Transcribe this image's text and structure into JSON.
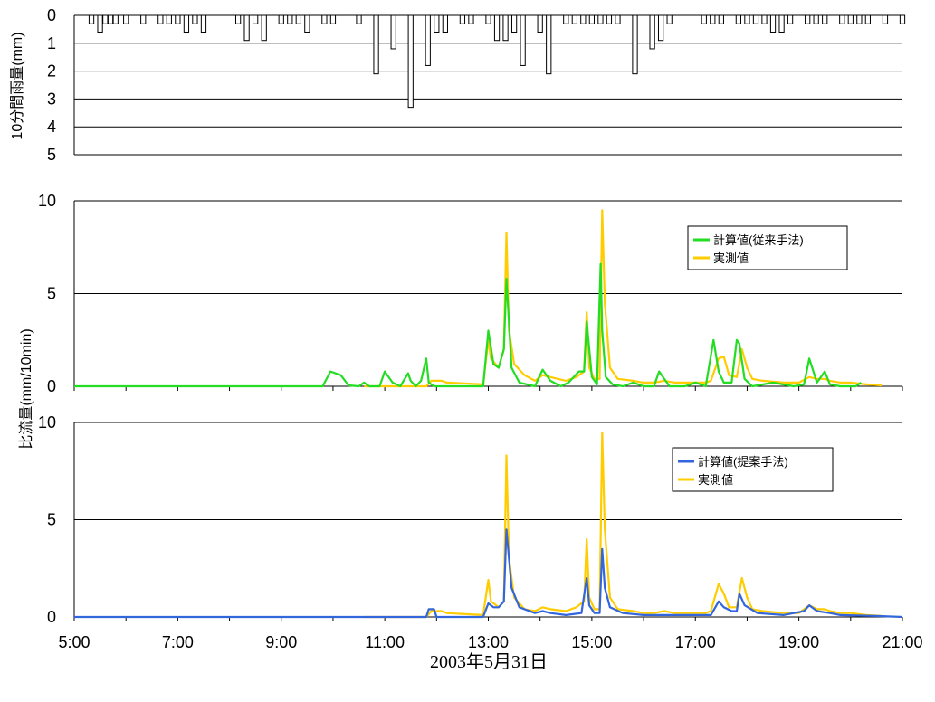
{
  "chart_data": [
    {
      "type": "bar",
      "ylabel": "10分間雨量(mm)",
      "ylim": [
        0,
        5
      ],
      "yticks": [
        "0",
        "1",
        "2",
        "3",
        "4",
        "5"
      ],
      "y_inverted": true,
      "grid": true,
      "x_range": [
        5,
        21
      ],
      "x": [
        5.333,
        5.5,
        5.6,
        5.7,
        5.8,
        6.0,
        6.333,
        6.667,
        6.833,
        7.0,
        7.167,
        7.333,
        7.5,
        8.167,
        8.333,
        8.5,
        8.667,
        9.0,
        9.167,
        9.333,
        9.5,
        9.833,
        10.0,
        10.5,
        10.833,
        11.167,
        11.5,
        11.833,
        12.0,
        12.167,
        12.5,
        12.667,
        13.0,
        13.167,
        13.333,
        13.5,
        13.667,
        14.0,
        14.167,
        14.5,
        14.667,
        14.833,
        15.0,
        15.167,
        15.333,
        15.5,
        15.833,
        16.167,
        16.333,
        16.5,
        17.167,
        17.333,
        17.5,
        17.833,
        18.0,
        18.167,
        18.333,
        18.5,
        18.667,
        18.833,
        19.167,
        19.333,
        19.5,
        19.833,
        20.0,
        20.167,
        20.333,
        20.667,
        21.0
      ],
      "values": [
        0.3,
        0.6,
        0.3,
        0.3,
        0.3,
        0.3,
        0.3,
        0.3,
        0.3,
        0.3,
        0.6,
        0.3,
        0.6,
        0.3,
        0.9,
        0.3,
        0.9,
        0.3,
        0.3,
        0.3,
        0.6,
        0.3,
        0.3,
        0.3,
        2.1,
        1.2,
        3.3,
        1.8,
        0.6,
        0.6,
        0.3,
        0.3,
        0.3,
        0.9,
        0.9,
        0.6,
        1.8,
        0.6,
        2.1,
        0.3,
        0.3,
        0.3,
        0.3,
        0.3,
        0.3,
        0.3,
        2.1,
        1.2,
        0.9,
        0.3,
        0.3,
        0.3,
        0.3,
        0.3,
        0.3,
        0.3,
        0.3,
        0.6,
        0.6,
        0.3,
        0.3,
        0.3,
        0.3,
        0.3,
        0.3,
        0.3,
        0.3,
        0.3,
        0.3
      ]
    },
    {
      "type": "line",
      "ylabel": "比流量(mm/10min)",
      "ylim": [
        0,
        10
      ],
      "yticks": [
        "0",
        "5",
        "10"
      ],
      "grid": true,
      "legend": "right",
      "series": [
        {
          "name": "計算値(従来手法)",
          "color": "#22dd22",
          "x": [
            5.0,
            9.8,
            9.95,
            10.15,
            10.3,
            10.5,
            10.6,
            10.7,
            10.9,
            11.0,
            11.15,
            11.3,
            11.45,
            11.5,
            11.6,
            11.7,
            11.8,
            11.85,
            11.95,
            12.1,
            12.9,
            13.0,
            13.1,
            13.2,
            13.3,
            13.35,
            13.45,
            13.6,
            13.9,
            14.05,
            14.2,
            14.4,
            14.55,
            14.75,
            14.85,
            14.9,
            15.0,
            15.1,
            15.17,
            15.2,
            15.27,
            15.4,
            15.6,
            15.8,
            16.0,
            16.2,
            16.3,
            16.5,
            16.8,
            17.0,
            17.2,
            17.35,
            17.45,
            17.55,
            17.7,
            17.8,
            17.85,
            17.95,
            18.1,
            18.5,
            18.9,
            19.1,
            19.2,
            19.35,
            19.5,
            19.6,
            19.8,
            20.1,
            20.2
          ],
          "values": [
            0,
            0,
            0.8,
            0.6,
            0.05,
            0,
            0.2,
            0,
            0,
            0.8,
            0.2,
            0,
            0.7,
            0.3,
            0,
            0.3,
            1.5,
            0.2,
            0,
            0,
            0,
            3.0,
            1.2,
            1.0,
            2.0,
            5.8,
            1.0,
            0.2,
            0,
            0.9,
            0.3,
            0,
            0.2,
            0.8,
            0.8,
            3.5,
            0.5,
            0.1,
            6.6,
            3.0,
            0.5,
            0.1,
            0,
            0.2,
            0,
            0,
            0.8,
            0,
            0,
            0.2,
            0,
            2.5,
            0.8,
            0.2,
            0.2,
            2.5,
            2.3,
            0.4,
            0,
            0.2,
            0,
            0.1,
            1.5,
            0.2,
            0.8,
            0.1,
            0,
            0,
            0.2
          ]
        },
        {
          "name": "実測値",
          "color": "#ffcc00",
          "x": [
            10.6,
            11.8,
            11.9,
            12.1,
            12.2,
            12.9,
            13.0,
            13.05,
            13.2,
            13.3,
            13.35,
            13.4,
            13.5,
            13.7,
            13.9,
            14.05,
            14.2,
            14.5,
            14.7,
            14.85,
            14.9,
            14.95,
            15.05,
            15.15,
            15.2,
            15.25,
            15.35,
            15.5,
            15.8,
            16.0,
            16.2,
            16.4,
            16.6,
            16.8,
            17.2,
            17.3,
            17.45,
            17.55,
            17.65,
            17.8,
            17.9,
            18.0,
            18.1,
            18.3,
            18.7,
            19.0,
            19.2,
            19.35,
            19.5,
            19.6,
            19.8,
            20.0,
            20.3,
            20.6
          ],
          "values": [
            0,
            0,
            0.3,
            0.3,
            0.2,
            0.1,
            2.5,
            1.5,
            1.0,
            2.0,
            8.3,
            3.0,
            1.2,
            0.6,
            0.3,
            0.6,
            0.5,
            0.3,
            0.5,
            0.8,
            4.0,
            1.0,
            0.4,
            0.4,
            9.5,
            4.5,
            1.0,
            0.4,
            0.3,
            0.2,
            0.2,
            0.3,
            0.2,
            0.2,
            0.2,
            0.3,
            1.5,
            1.6,
            0.6,
            0.5,
            2.0,
            1.0,
            0.4,
            0.3,
            0.2,
            0.2,
            0.5,
            0.4,
            0.4,
            0.3,
            0.2,
            0.2,
            0.1,
            0.05
          ]
        }
      ]
    },
    {
      "type": "line",
      "ylim": [
        0,
        10
      ],
      "yticks": [
        "0",
        "5",
        "10"
      ],
      "grid": true,
      "legend": "right",
      "xticks": [
        "5:00",
        "7:00",
        "9:00",
        "11:00",
        "13:00",
        "15:00",
        "17:00",
        "19:00",
        "21:00"
      ],
      "xlabel": "2003年5月31日",
      "series": [
        {
          "name": "計算値(提案手法)",
          "color": "#3366dd",
          "x": [
            5.0,
            11.8,
            11.85,
            11.95,
            12.0,
            12.9,
            13.0,
            13.1,
            13.2,
            13.3,
            13.35,
            13.45,
            13.6,
            13.9,
            14.05,
            14.2,
            14.5,
            14.8,
            14.9,
            14.95,
            15.05,
            15.15,
            15.2,
            15.25,
            15.35,
            15.6,
            16.0,
            16.5,
            17.3,
            17.45,
            17.55,
            17.7,
            17.8,
            17.85,
            17.95,
            18.2,
            18.7,
            19.1,
            19.2,
            19.35,
            19.6,
            19.8,
            20.5,
            21.0
          ],
          "values": [
            0,
            0,
            0.4,
            0.4,
            0,
            0,
            0.7,
            0.5,
            0.5,
            0.8,
            4.5,
            1.5,
            0.5,
            0.2,
            0.3,
            0.2,
            0.1,
            0.2,
            2.0,
            0.6,
            0.2,
            0.2,
            3.5,
            1.5,
            0.5,
            0.2,
            0.1,
            0.1,
            0.1,
            0.8,
            0.5,
            0.3,
            0.3,
            1.2,
            0.6,
            0.2,
            0.1,
            0.3,
            0.6,
            0.3,
            0.2,
            0.1,
            0.05,
            0
          ]
        },
        {
          "name": "実測値",
          "color": "#ffcc00",
          "x": [
            10.6,
            11.8,
            11.9,
            12.1,
            12.2,
            12.9,
            13.0,
            13.05,
            13.2,
            13.3,
            13.35,
            13.4,
            13.5,
            13.7,
            13.9,
            14.05,
            14.2,
            14.5,
            14.7,
            14.85,
            14.9,
            14.95,
            15.05,
            15.15,
            15.2,
            15.25,
            15.35,
            15.5,
            15.8,
            16.0,
            16.2,
            16.4,
            16.6,
            16.8,
            17.2,
            17.3,
            17.45,
            17.55,
            17.65,
            17.8,
            17.9,
            18.0,
            18.1,
            18.3,
            18.7,
            19.0,
            19.2,
            19.35,
            19.5,
            19.6,
            19.8,
            20.0,
            20.3,
            20.6
          ],
          "values": [
            0,
            0,
            0.3,
            0.3,
            0.2,
            0.1,
            1.9,
            0.8,
            0.5,
            0.8,
            8.3,
            3.0,
            1.0,
            0.4,
            0.3,
            0.5,
            0.4,
            0.3,
            0.5,
            0.8,
            4.0,
            1.0,
            0.4,
            0.4,
            9.5,
            4.5,
            1.0,
            0.4,
            0.3,
            0.2,
            0.2,
            0.3,
            0.2,
            0.2,
            0.2,
            0.3,
            1.7,
            1.2,
            0.5,
            0.5,
            2.0,
            1.0,
            0.4,
            0.3,
            0.2,
            0.2,
            0.6,
            0.4,
            0.4,
            0.3,
            0.2,
            0.2,
            0.1,
            0.05
          ]
        }
      ]
    }
  ]
}
